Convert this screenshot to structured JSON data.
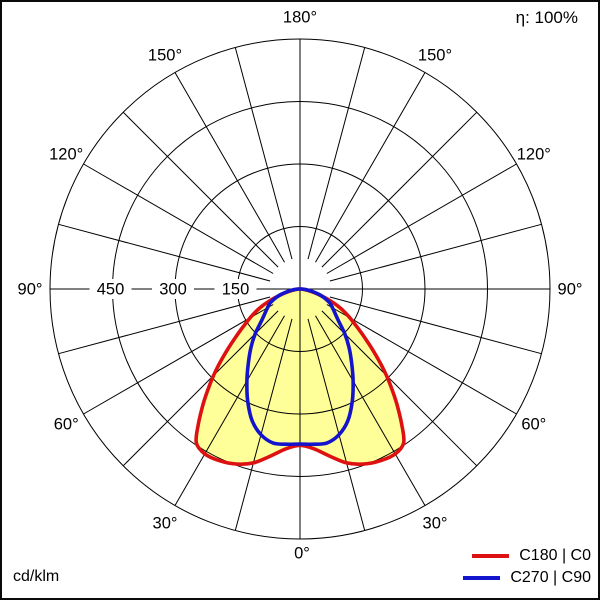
{
  "frame": {
    "efficiency": "η: 100%",
    "unit": "cd/klm"
  },
  "legend": {
    "items": [
      {
        "label": "C180 | C0",
        "color": "#dd1111"
      },
      {
        "label": "C270 | C90",
        "color": "#1414cc"
      }
    ]
  },
  "chart_data": {
    "type": "polar",
    "subtype": "photometric-intensity-distribution",
    "units": "cd/klm",
    "efficiency_text": "η: 100%",
    "angle_axis": {
      "zero_position": "bottom",
      "label_step_deg": 30,
      "grid_step_deg": 15,
      "labels_deg": [
        0,
        30,
        60,
        90,
        120,
        150,
        180
      ],
      "label_suffix": "°"
    },
    "radial_axis": {
      "tick_labels": [
        450,
        300,
        150
      ],
      "rings": [
        150,
        300,
        450,
        600
      ],
      "max": 600
    },
    "grid_color": "#000000",
    "series": [
      {
        "name": "C180 | C0",
        "color": "#dd1111",
        "fill": "#ffff99",
        "mirror": true,
        "gamma_deg": [
          0,
          5,
          10,
          15,
          20,
          25,
          30,
          34,
          37,
          40,
          43,
          46,
          50,
          54,
          58,
          62,
          66,
          70,
          74,
          78,
          82,
          86,
          90
        ],
        "intensity": [
          375,
          385,
          407,
          432,
          447,
          455,
          457,
          445,
          405,
          362,
          320,
          280,
          228,
          185,
          152,
          125,
          98,
          70,
          45,
          26,
          13,
          6,
          3
        ]
      },
      {
        "name": "C270 | C90",
        "color": "#1414cc",
        "fill": null,
        "mirror": true,
        "gamma_deg": [
          0,
          5,
          10,
          15,
          20,
          25,
          30,
          35,
          40,
          45,
          50,
          55,
          60,
          65,
          70,
          74,
          78,
          82,
          86,
          90
        ],
        "intensity": [
          372,
          374,
          375,
          362,
          336,
          297,
          255,
          216,
          183,
          152,
          122,
          103,
          90,
          79,
          62,
          48,
          33,
          20,
          10,
          4
        ]
      }
    ]
  }
}
